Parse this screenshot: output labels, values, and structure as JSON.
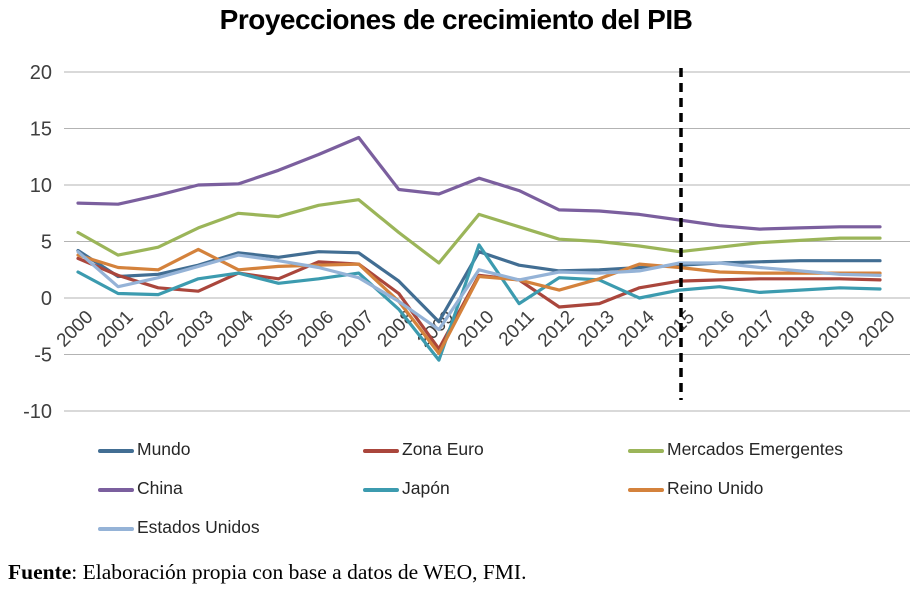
{
  "title": "Proyecciones de crecimiento del PIB",
  "chart_data": {
    "type": "line",
    "title": "Proyecciones de crecimiento del PIB",
    "xlabel": "",
    "ylabel": "",
    "ylim": [
      -10,
      20
    ],
    "yticks": [
      20,
      15,
      10,
      5,
      0,
      -5,
      -10
    ],
    "grid": "horizontal",
    "legend_position": "bottom",
    "projection_divider_x": 2015,
    "divider_style": "dashed-black-vertical",
    "x": [
      2000,
      2001,
      2002,
      2003,
      2004,
      2005,
      2006,
      2007,
      2008,
      2009,
      2010,
      2011,
      2012,
      2013,
      2014,
      2015,
      2016,
      2017,
      2018,
      2019,
      2020
    ],
    "series": [
      {
        "id": "mundo",
        "name": "Mundo",
        "color": "#426e93",
        "values": [
          4.2,
          1.9,
          2.1,
          2.9,
          4.0,
          3.6,
          4.1,
          4.0,
          1.5,
          -2.1,
          4.1,
          2.9,
          2.4,
          2.5,
          2.7,
          2.9,
          3.1,
          3.2,
          3.3,
          3.3,
          3.3
        ]
      },
      {
        "id": "zona-euro",
        "name": "Zona Euro",
        "color": "#aa463c",
        "values": [
          3.5,
          2.0,
          0.9,
          0.6,
          2.2,
          1.7,
          3.2,
          3.0,
          0.4,
          -4.5,
          2.0,
          1.6,
          -0.8,
          -0.5,
          0.9,
          1.5,
          1.6,
          1.7,
          1.7,
          1.7,
          1.6
        ]
      },
      {
        "id": "mercados-emergentes",
        "name": "Mercados Emergentes",
        "color": "#9bb559",
        "values": [
          5.8,
          3.8,
          4.5,
          6.2,
          7.5,
          7.2,
          8.2,
          8.7,
          5.8,
          3.1,
          7.4,
          6.3,
          5.2,
          5.0,
          4.6,
          4.1,
          4.5,
          4.9,
          5.1,
          5.3,
          5.3
        ]
      },
      {
        "id": "china",
        "name": "China",
        "color": "#7b5f9e",
        "values": [
          8.4,
          8.3,
          9.1,
          10.0,
          10.1,
          11.3,
          12.7,
          14.2,
          9.6,
          9.2,
          10.6,
          9.5,
          7.8,
          7.7,
          7.4,
          6.9,
          6.4,
          6.1,
          6.2,
          6.3,
          6.3
        ]
      },
      {
        "id": "japon",
        "name": "Japón",
        "color": "#3c9baf",
        "values": [
          2.3,
          0.4,
          0.3,
          1.7,
          2.2,
          1.3,
          1.7,
          2.2,
          -1.0,
          -5.5,
          4.7,
          -0.5,
          1.8,
          1.6,
          0.0,
          0.7,
          1.0,
          0.5,
          0.7,
          0.9,
          0.8
        ]
      },
      {
        "id": "reino-unido",
        "name": "Reino Unido",
        "color": "#d4823c",
        "values": [
          3.8,
          2.7,
          2.5,
          4.3,
          2.5,
          2.8,
          2.9,
          3.0,
          -0.3,
          -4.9,
          1.9,
          1.6,
          0.7,
          1.7,
          3.0,
          2.7,
          2.3,
          2.2,
          2.2,
          2.2,
          2.2
        ]
      },
      {
        "id": "estados-unidos",
        "name": "Estados Unidos",
        "color": "#95b3d7",
        "values": [
          4.1,
          1.0,
          1.8,
          2.8,
          3.8,
          3.3,
          2.7,
          1.8,
          -0.3,
          -2.8,
          2.5,
          1.6,
          2.3,
          2.2,
          2.4,
          3.1,
          3.1,
          2.7,
          2.4,
          2.1,
          2.0
        ]
      }
    ]
  },
  "source": {
    "label": "Fuente",
    "text": ": Elaboración propia con base a datos de WEO, FMI."
  }
}
